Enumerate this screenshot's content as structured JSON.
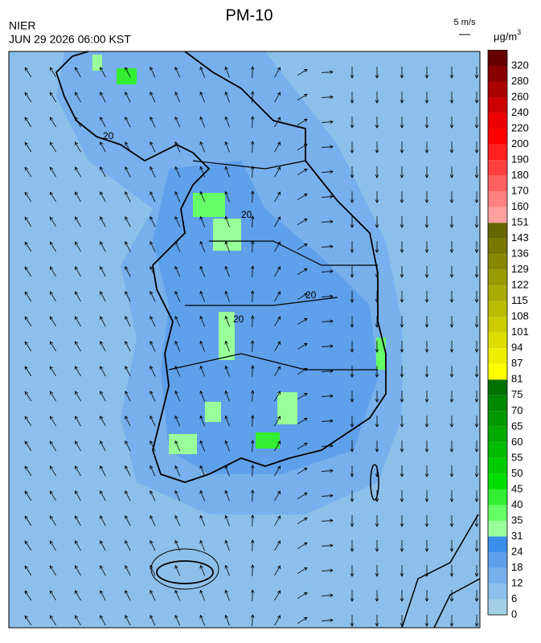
{
  "header": {
    "title": "PM-10",
    "agency": "NIER",
    "datetime": "JUN 29 2026 06:00 KST",
    "wind_scale": "5 m/s"
  },
  "legend": {
    "unit": "μg/m",
    "unit_sup": "3",
    "values": [
      0,
      6,
      12,
      18,
      24,
      31,
      35,
      40,
      45,
      50,
      55,
      60,
      65,
      70,
      75,
      81,
      87,
      94,
      101,
      108,
      115,
      122,
      129,
      136,
      143,
      151,
      160,
      170,
      180,
      190,
      200,
      220,
      240,
      260,
      280,
      320
    ],
    "colors": [
      "#a3d0e6",
      "#8cc0ea",
      "#77b0ec",
      "#5ea0ea",
      "#3a8eea",
      "#99ff99",
      "#66ff66",
      "#33ee33",
      "#00dd00",
      "#00cc00",
      "#00bb00",
      "#00aa00",
      "#009900",
      "#008800",
      "#007000",
      "#ffff00",
      "#eeee00",
      "#dddd00",
      "#cccc00",
      "#bbbb00",
      "#aaaa00",
      "#999900",
      "#888800",
      "#777700",
      "#666600",
      "#ffa0a0",
      "#ff8080",
      "#ff6060",
      "#ff4040",
      "#ff2020",
      "#ff0000",
      "#ee0000",
      "#cc0000",
      "#aa0000",
      "#880000",
      "#660000"
    ]
  },
  "map_labels": [
    "20",
    "20",
    "20",
    "20"
  ]
}
